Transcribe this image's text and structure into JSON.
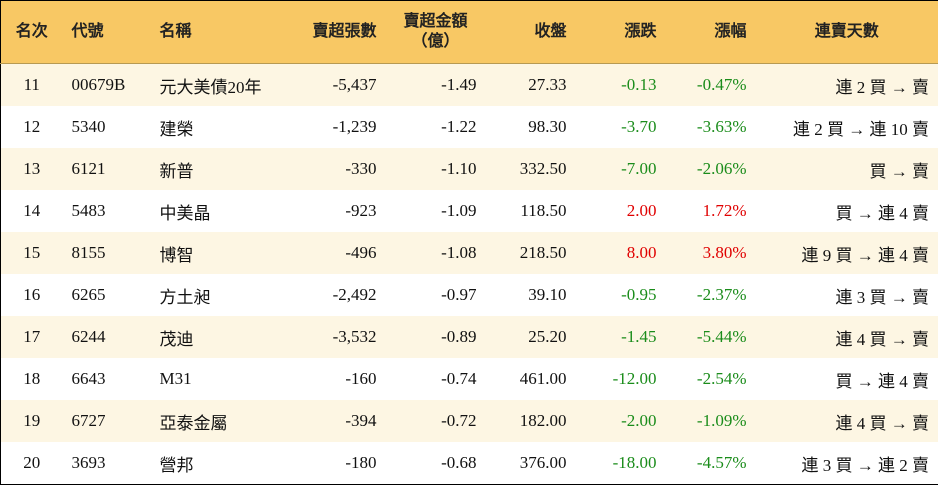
{
  "table": {
    "headers": [
      "名次",
      "代號",
      "名稱",
      "賣超張數",
      [
        "賣超金額",
        "（億）"
      ],
      "收盤",
      "漲跌",
      "漲幅",
      "連賣天數"
    ],
    "rows": [
      [
        "11",
        "00679B",
        "元大美債20年",
        "-5,437",
        "-1.49",
        "27.33",
        "-0.13",
        "-0.47%",
        "連 2 買 → 賣"
      ],
      [
        "12",
        "5340",
        "建榮",
        "-1,239",
        "-1.22",
        "98.30",
        "-3.70",
        "-3.63%",
        "連 2 買 → 連 10 賣"
      ],
      [
        "13",
        "6121",
        "新普",
        "-330",
        "-1.10",
        "332.50",
        "-7.00",
        "-2.06%",
        "買 → 賣"
      ],
      [
        "14",
        "5483",
        "中美晶",
        "-923",
        "-1.09",
        "118.50",
        "2.00",
        "1.72%",
        "買 → 連 4 賣"
      ],
      [
        "15",
        "8155",
        "博智",
        "-496",
        "-1.08",
        "218.50",
        "8.00",
        "3.80%",
        "連 9 買 → 連 4 賣"
      ],
      [
        "16",
        "6265",
        "方土昶",
        "-2,492",
        "-0.97",
        "39.10",
        "-0.95",
        "-2.37%",
        "連 3 買 → 賣"
      ],
      [
        "17",
        "6244",
        "茂迪",
        "-3,532",
        "-0.89",
        "25.20",
        "-1.45",
        "-5.44%",
        "連 4 買 → 賣"
      ],
      [
        "18",
        "6643",
        "M31",
        "-160",
        "-0.74",
        "461.00",
        "-12.00",
        "-2.54%",
        "買 → 連 4 賣"
      ],
      [
        "19",
        "6727",
        "亞泰金屬",
        "-394",
        "-0.72",
        "182.00",
        "-2.00",
        "-1.09%",
        "連 4 買 → 賣"
      ],
      [
        "20",
        "3693",
        "營邦",
        "-180",
        "-0.68",
        "376.00",
        "-18.00",
        "-4.57%",
        "連 3 買 → 連 2 賣"
      ]
    ]
  }
}
